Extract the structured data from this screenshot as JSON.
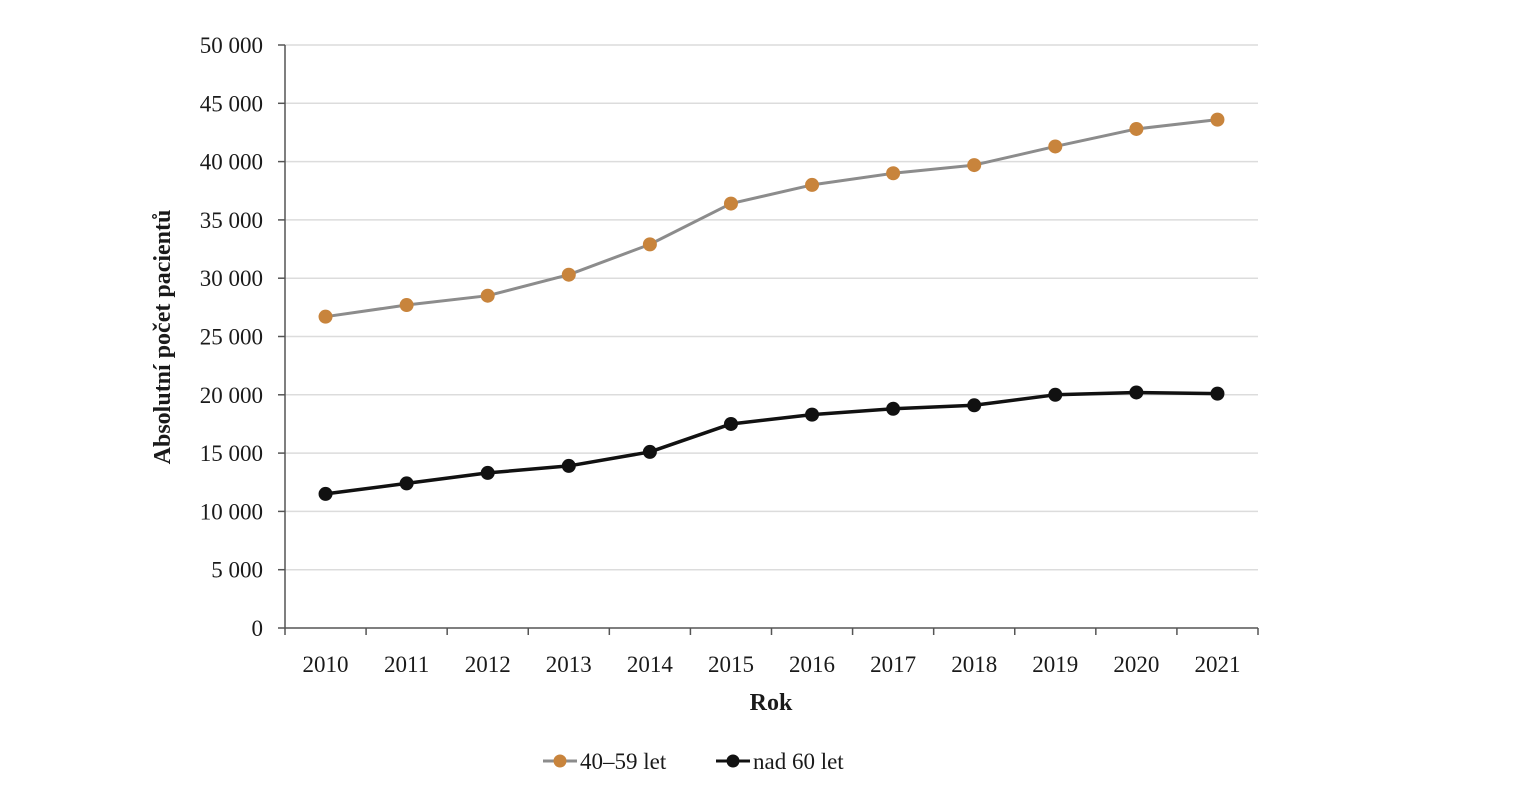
{
  "chart_data": {
    "type": "line",
    "title": "",
    "xlabel": "Rok",
    "ylabel": "Absolutní počet pacientů",
    "categories": [
      "2010",
      "2011",
      "2012",
      "2013",
      "2014",
      "2015",
      "2016",
      "2017",
      "2018",
      "2019",
      "2020",
      "2021"
    ],
    "ylim": [
      0,
      50000
    ],
    "yticks": [
      0,
      5000,
      10000,
      15000,
      20000,
      25000,
      30000,
      35000,
      40000,
      45000,
      50000
    ],
    "ytick_labels": [
      "0",
      "5 000",
      "10 000",
      "15 000",
      "20 000",
      "25 000",
      "30 000",
      "35 000",
      "40 000",
      "45 000",
      "50 000"
    ],
    "grid": true,
    "legend_position": "bottom",
    "series": [
      {
        "name": "40–59 let",
        "line_color": "#8c8c8c",
        "marker_color": "#c8843c",
        "values": [
          26700,
          27700,
          28500,
          30300,
          32900,
          36400,
          38000,
          39000,
          39700,
          41300,
          42800,
          43600
        ]
      },
      {
        "name": "nad 60 let",
        "line_color": "#111111",
        "marker_color": "#111111",
        "values": [
          11500,
          12400,
          13300,
          13900,
          15100,
          17500,
          18300,
          18800,
          19100,
          20000,
          20200,
          20100
        ]
      }
    ]
  }
}
